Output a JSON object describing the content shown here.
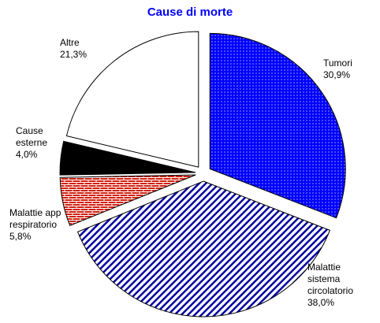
{
  "chart_data": {
    "type": "pie",
    "title": "Cause di morte",
    "categories": [
      [
        "Tumori"
      ],
      [
        "Malattie",
        "sistema",
        "circolatorio"
      ],
      [
        "Malattie app",
        "respiratorio"
      ],
      [
        "Cause",
        "esterne"
      ],
      [
        "Altre"
      ]
    ],
    "values": [
      30.9,
      38.0,
      5.8,
      4.0,
      21.3
    ],
    "value_labels": [
      "30,9%",
      "38,0%",
      "5,8%",
      "4,0%",
      "21,3%"
    ],
    "colors": [
      "#0000ff",
      "#0000a0",
      "#d02010",
      "#000000",
      "#ffffff"
    ],
    "patterns": [
      "dots",
      "stripes",
      "bricks",
      "solid",
      "solid"
    ]
  }
}
